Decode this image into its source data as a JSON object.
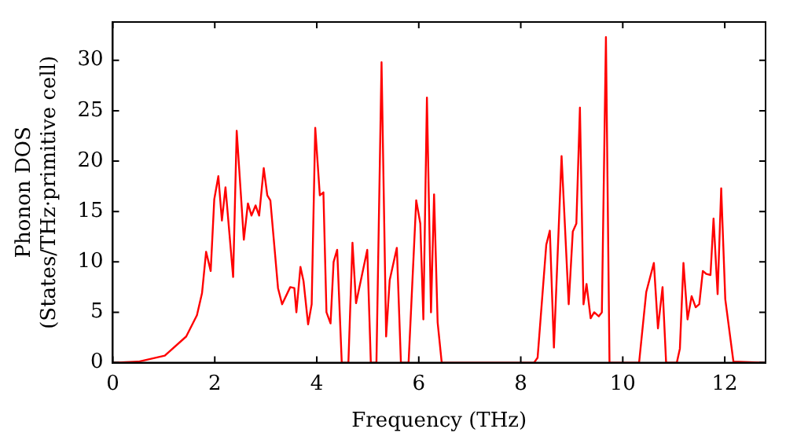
{
  "chart_data": {
    "type": "line",
    "xlabel": "Frequency (THz)",
    "ylabel": "Phonon DOS\n(States/THz·primitive cell)",
    "xlim": [
      0,
      12.8
    ],
    "xticks": [
      0,
      2,
      4,
      6,
      8,
      10,
      12
    ],
    "ylim": [
      0,
      33.8
    ],
    "yticks": [
      0,
      5,
      10,
      15,
      20,
      25,
      30
    ],
    "grid": false,
    "legend": false,
    "marker": "none",
    "line_style": "solid",
    "series": [
      {
        "color": "#ff0000",
        "x": [
          0,
          0.5,
          1.02,
          1.44,
          1.65,
          1.75,
          1.83,
          1.92,
          1.99,
          2.07,
          2.14,
          2.21,
          2.36,
          2.43,
          2.57,
          2.65,
          2.72,
          2.8,
          2.87,
          2.96,
          3.03,
          3.09,
          3.24,
          3.32,
          3.48,
          3.56,
          3.6,
          3.68,
          3.74,
          3.83,
          3.9,
          3.97,
          4.06,
          4.13,
          4.19,
          4.27,
          4.33,
          4.4,
          4.49,
          4.62,
          4.7,
          4.77,
          4.99,
          5.06,
          5.17,
          5.27,
          5.36,
          5.43,
          5.57,
          5.65,
          5.8,
          5.95,
          6.03,
          6.09,
          6.16,
          6.24,
          6.3,
          6.37,
          6.45,
          8.26,
          8.33,
          8.5,
          8.57,
          8.65,
          8.8,
          8.94,
          9.02,
          9.09,
          9.16,
          9.23,
          9.29,
          9.37,
          9.44,
          9.53,
          9.59,
          9.67,
          9.74,
          10.32,
          10.46,
          10.61,
          10.69,
          10.78,
          10.85,
          11.06,
          11.12,
          11.19,
          11.27,
          11.35,
          11.43,
          11.5,
          11.57,
          11.64,
          11.72,
          11.78,
          11.86,
          11.93,
          12.01,
          12.17,
          12.8
        ],
        "values": [
          0,
          0.1,
          0.7,
          2.6,
          4.7,
          6.9,
          11,
          9.1,
          16.2,
          18.5,
          14.1,
          17.4,
          8.5,
          23,
          12.2,
          15.8,
          14.6,
          15.6,
          14.6,
          19.3,
          16.6,
          16.1,
          7.4,
          5.8,
          7.5,
          7.4,
          5,
          9.5,
          8.1,
          3.8,
          5.8,
          23.3,
          16.6,
          16.9,
          5,
          3.9,
          10,
          11.2,
          0,
          0,
          11.9,
          5.9,
          11.2,
          0,
          0,
          29.8,
          2.6,
          8.2,
          11.4,
          0,
          0,
          16.1,
          13.8,
          4.3,
          26.3,
          5,
          16.7,
          4,
          0,
          0,
          0.5,
          11.7,
          13.1,
          1.5,
          20.5,
          5.8,
          13,
          13.8,
          25.3,
          5.8,
          7.8,
          4.4,
          5,
          4.6,
          5,
          32.3,
          0,
          0,
          7,
          9.9,
          3.4,
          7.5,
          0,
          0,
          1.4,
          9.9,
          4.3,
          6.6,
          5.5,
          5.8,
          9.1,
          8.8,
          8.7,
          14.3,
          6.8,
          17.3,
          6.3,
          0.1,
          0
        ]
      }
    ]
  }
}
